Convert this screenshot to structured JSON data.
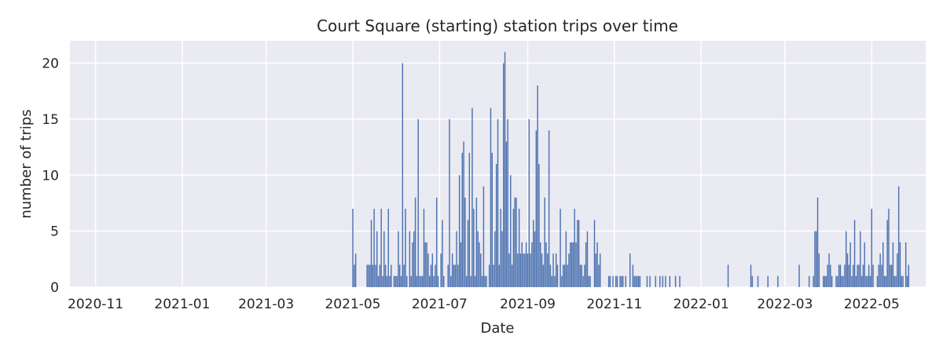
{
  "chart_data": {
    "type": "bar",
    "title": "Court Square (starting) station trips over time",
    "xlabel": "Date",
    "ylabel": "number of trips",
    "xlim": [
      "2020-10-14",
      "2022-06-08"
    ],
    "ylim": [
      0,
      22
    ],
    "x_ticks": [
      "2020-11",
      "2021-01",
      "2021-03",
      "2021-05",
      "2021-07",
      "2021-09",
      "2021-11",
      "2022-01",
      "2022-03",
      "2022-05"
    ],
    "y_ticks": [
      0,
      5,
      10,
      15,
      20
    ],
    "grid": true,
    "colors": {
      "bar": "#4c72b0",
      "plot_bg": "#eaeaf2",
      "grid": "#ffffff"
    },
    "series": [
      {
        "values": [
          [
            "2021-05-01",
            7
          ],
          [
            "2021-05-02",
            2
          ],
          [
            "2021-05-03",
            3
          ],
          [
            "2021-05-11",
            2
          ],
          [
            "2021-05-12",
            2
          ],
          [
            "2021-05-13",
            2
          ],
          [
            "2021-05-14",
            6
          ],
          [
            "2021-05-15",
            2
          ],
          [
            "2021-05-16",
            7
          ],
          [
            "2021-05-17",
            2
          ],
          [
            "2021-05-18",
            5
          ],
          [
            "2021-05-19",
            1
          ],
          [
            "2021-05-20",
            2
          ],
          [
            "2021-05-21",
            7
          ],
          [
            "2021-05-22",
            1
          ],
          [
            "2021-05-23",
            5
          ],
          [
            "2021-05-24",
            2
          ],
          [
            "2021-05-25",
            1
          ],
          [
            "2021-05-26",
            7
          ],
          [
            "2021-05-27",
            1
          ],
          [
            "2021-05-28",
            2
          ],
          [
            "2021-05-30",
            1
          ],
          [
            "2021-05-31",
            1
          ],
          [
            "2021-06-01",
            1
          ],
          [
            "2021-06-02",
            5
          ],
          [
            "2021-06-03",
            2
          ],
          [
            "2021-06-04",
            1
          ],
          [
            "2021-06-05",
            20
          ],
          [
            "2021-06-06",
            2
          ],
          [
            "2021-06-07",
            7
          ],
          [
            "2021-06-08",
            1
          ],
          [
            "2021-06-10",
            5
          ],
          [
            "2021-06-11",
            1
          ],
          [
            "2021-06-12",
            4
          ],
          [
            "2021-06-13",
            5
          ],
          [
            "2021-06-14",
            8
          ],
          [
            "2021-06-15",
            1
          ],
          [
            "2021-06-16",
            15
          ],
          [
            "2021-06-17",
            1
          ],
          [
            "2021-06-18",
            1
          ],
          [
            "2021-06-19",
            1
          ],
          [
            "2021-06-20",
            7
          ],
          [
            "2021-06-21",
            4
          ],
          [
            "2021-06-22",
            4
          ],
          [
            "2021-06-23",
            3
          ],
          [
            "2021-06-24",
            1
          ],
          [
            "2021-06-25",
            2
          ],
          [
            "2021-06-26",
            3
          ],
          [
            "2021-06-27",
            1
          ],
          [
            "2021-06-28",
            2
          ],
          [
            "2021-06-29",
            8
          ],
          [
            "2021-06-30",
            1
          ],
          [
            "2021-07-02",
            3
          ],
          [
            "2021-07-03",
            6
          ],
          [
            "2021-07-04",
            1
          ],
          [
            "2021-07-07",
            2
          ],
          [
            "2021-07-08",
            15
          ],
          [
            "2021-07-09",
            1
          ],
          [
            "2021-07-10",
            3
          ],
          [
            "2021-07-11",
            2
          ],
          [
            "2021-07-12",
            2
          ],
          [
            "2021-07-13",
            5
          ],
          [
            "2021-07-14",
            2
          ],
          [
            "2021-07-15",
            10
          ],
          [
            "2021-07-16",
            4
          ],
          [
            "2021-07-17",
            12
          ],
          [
            "2021-07-18",
            13
          ],
          [
            "2021-07-19",
            8
          ],
          [
            "2021-07-20",
            1
          ],
          [
            "2021-07-21",
            6
          ],
          [
            "2021-07-22",
            12
          ],
          [
            "2021-07-23",
            1
          ],
          [
            "2021-07-24",
            16
          ],
          [
            "2021-07-25",
            7
          ],
          [
            "2021-07-26",
            1
          ],
          [
            "2021-07-27",
            8
          ],
          [
            "2021-07-28",
            5
          ],
          [
            "2021-07-29",
            4
          ],
          [
            "2021-07-30",
            3
          ],
          [
            "2021-07-31",
            1
          ],
          [
            "2021-08-01",
            9
          ],
          [
            "2021-08-02",
            1
          ],
          [
            "2021-08-03",
            1
          ],
          [
            "2021-08-05",
            2
          ],
          [
            "2021-08-06",
            16
          ],
          [
            "2021-08-07",
            12
          ],
          [
            "2021-08-08",
            2
          ],
          [
            "2021-08-09",
            5
          ],
          [
            "2021-08-10",
            11
          ],
          [
            "2021-08-11",
            15
          ],
          [
            "2021-08-12",
            2
          ],
          [
            "2021-08-13",
            7
          ],
          [
            "2021-08-14",
            5
          ],
          [
            "2021-08-15",
            20
          ],
          [
            "2021-08-16",
            21
          ],
          [
            "2021-08-17",
            13
          ],
          [
            "2021-08-18",
            15
          ],
          [
            "2021-08-19",
            3
          ],
          [
            "2021-08-20",
            10
          ],
          [
            "2021-08-21",
            2
          ],
          [
            "2021-08-22",
            7
          ],
          [
            "2021-08-23",
            8
          ],
          [
            "2021-08-24",
            8
          ],
          [
            "2021-08-25",
            3
          ],
          [
            "2021-08-26",
            7
          ],
          [
            "2021-08-27",
            3
          ],
          [
            "2021-08-28",
            4
          ],
          [
            "2021-08-29",
            3
          ],
          [
            "2021-08-30",
            3
          ],
          [
            "2021-08-31",
            4
          ],
          [
            "2021-09-01",
            3
          ],
          [
            "2021-09-02",
            15
          ],
          [
            "2021-09-03",
            3
          ],
          [
            "2021-09-04",
            4
          ],
          [
            "2021-09-05",
            6
          ],
          [
            "2021-09-06",
            5
          ],
          [
            "2021-09-07",
            14
          ],
          [
            "2021-09-08",
            18
          ],
          [
            "2021-09-09",
            11
          ],
          [
            "2021-09-10",
            4
          ],
          [
            "2021-09-11",
            3
          ],
          [
            "2021-09-12",
            2
          ],
          [
            "2021-09-13",
            8
          ],
          [
            "2021-09-14",
            4
          ],
          [
            "2021-09-15",
            3
          ],
          [
            "2021-09-16",
            14
          ],
          [
            "2021-09-17",
            2
          ],
          [
            "2021-09-18",
            1
          ],
          [
            "2021-09-19",
            3
          ],
          [
            "2021-09-20",
            1
          ],
          [
            "2021-09-21",
            3
          ],
          [
            "2021-09-22",
            2
          ],
          [
            "2021-09-24",
            7
          ],
          [
            "2021-09-25",
            1
          ],
          [
            "2021-09-26",
            2
          ],
          [
            "2021-09-27",
            2
          ],
          [
            "2021-09-28",
            5
          ],
          [
            "2021-09-29",
            2
          ],
          [
            "2021-09-30",
            3
          ],
          [
            "2021-10-01",
            4
          ],
          [
            "2021-10-02",
            4
          ],
          [
            "2021-10-03",
            4
          ],
          [
            "2021-10-04",
            7
          ],
          [
            "2021-10-05",
            4
          ],
          [
            "2021-10-06",
            6
          ],
          [
            "2021-10-07",
            6
          ],
          [
            "2021-10-08",
            2
          ],
          [
            "2021-10-09",
            2
          ],
          [
            "2021-10-10",
            1
          ],
          [
            "2021-10-11",
            2
          ],
          [
            "2021-10-12",
            4
          ],
          [
            "2021-10-13",
            5
          ],
          [
            "2021-10-14",
            1
          ],
          [
            "2021-10-15",
            1
          ],
          [
            "2021-10-18",
            6
          ],
          [
            "2021-10-19",
            3
          ],
          [
            "2021-10-20",
            4
          ],
          [
            "2021-10-21",
            2
          ],
          [
            "2021-10-22",
            3
          ],
          [
            "2021-10-28",
            1
          ],
          [
            "2021-10-29",
            1
          ],
          [
            "2021-10-31",
            1
          ],
          [
            "2021-11-02",
            1
          ],
          [
            "2021-11-03",
            1
          ],
          [
            "2021-11-05",
            1
          ],
          [
            "2021-11-06",
            1
          ],
          [
            "2021-11-07",
            1
          ],
          [
            "2021-11-09",
            1
          ],
          [
            "2021-11-12",
            3
          ],
          [
            "2021-11-14",
            2
          ],
          [
            "2021-11-15",
            1
          ],
          [
            "2021-11-16",
            1
          ],
          [
            "2021-11-17",
            1
          ],
          [
            "2021-11-18",
            1
          ],
          [
            "2021-11-19",
            1
          ],
          [
            "2021-11-24",
            1
          ],
          [
            "2021-11-26",
            1
          ],
          [
            "2021-11-30",
            1
          ],
          [
            "2021-12-03",
            1
          ],
          [
            "2021-12-05",
            1
          ],
          [
            "2021-12-07",
            1
          ],
          [
            "2021-12-10",
            1
          ],
          [
            "2021-12-14",
            1
          ],
          [
            "2021-12-17",
            1
          ],
          [
            "2022-01-20",
            2
          ],
          [
            "2022-02-05",
            2
          ],
          [
            "2022-02-06",
            1
          ],
          [
            "2022-02-10",
            1
          ],
          [
            "2022-02-17",
            1
          ],
          [
            "2022-02-24",
            1
          ],
          [
            "2022-03-11",
            2
          ],
          [
            "2022-03-18",
            1
          ],
          [
            "2022-03-21",
            1
          ],
          [
            "2022-03-22",
            5
          ],
          [
            "2022-03-23",
            5
          ],
          [
            "2022-03-24",
            8
          ],
          [
            "2022-03-25",
            3
          ],
          [
            "2022-03-28",
            1
          ],
          [
            "2022-03-29",
            1
          ],
          [
            "2022-03-30",
            1
          ],
          [
            "2022-03-31",
            2
          ],
          [
            "2022-04-01",
            3
          ],
          [
            "2022-04-02",
            2
          ],
          [
            "2022-04-03",
            1
          ],
          [
            "2022-04-06",
            1
          ],
          [
            "2022-04-07",
            1
          ],
          [
            "2022-04-08",
            2
          ],
          [
            "2022-04-09",
            2
          ],
          [
            "2022-04-10",
            1
          ],
          [
            "2022-04-11",
            1
          ],
          [
            "2022-04-12",
            2
          ],
          [
            "2022-04-13",
            5
          ],
          [
            "2022-04-14",
            3
          ],
          [
            "2022-04-15",
            2
          ],
          [
            "2022-04-16",
            4
          ],
          [
            "2022-04-17",
            1
          ],
          [
            "2022-04-18",
            2
          ],
          [
            "2022-04-19",
            6
          ],
          [
            "2022-04-20",
            1
          ],
          [
            "2022-04-21",
            2
          ],
          [
            "2022-04-22",
            2
          ],
          [
            "2022-04-23",
            5
          ],
          [
            "2022-04-24",
            1
          ],
          [
            "2022-04-25",
            2
          ],
          [
            "2022-04-26",
            4
          ],
          [
            "2022-04-27",
            1
          ],
          [
            "2022-04-28",
            1
          ],
          [
            "2022-04-29",
            2
          ],
          [
            "2022-04-30",
            1
          ],
          [
            "2022-05-01",
            7
          ],
          [
            "2022-05-02",
            2
          ],
          [
            "2022-05-05",
            1
          ],
          [
            "2022-05-06",
            2
          ],
          [
            "2022-05-07",
            3
          ],
          [
            "2022-05-08",
            2
          ],
          [
            "2022-05-09",
            4
          ],
          [
            "2022-05-10",
            1
          ],
          [
            "2022-05-11",
            1
          ],
          [
            "2022-05-12",
            6
          ],
          [
            "2022-05-13",
            7
          ],
          [
            "2022-05-14",
            2
          ],
          [
            "2022-05-15",
            2
          ],
          [
            "2022-05-16",
            4
          ],
          [
            "2022-05-17",
            1
          ],
          [
            "2022-05-18",
            1
          ],
          [
            "2022-05-19",
            3
          ],
          [
            "2022-05-20",
            9
          ],
          [
            "2022-05-21",
            4
          ],
          [
            "2022-05-22",
            1
          ],
          [
            "2022-05-23",
            1
          ],
          [
            "2022-05-25",
            4
          ],
          [
            "2022-05-26",
            1
          ],
          [
            "2022-05-27",
            2
          ]
        ]
      }
    ]
  }
}
